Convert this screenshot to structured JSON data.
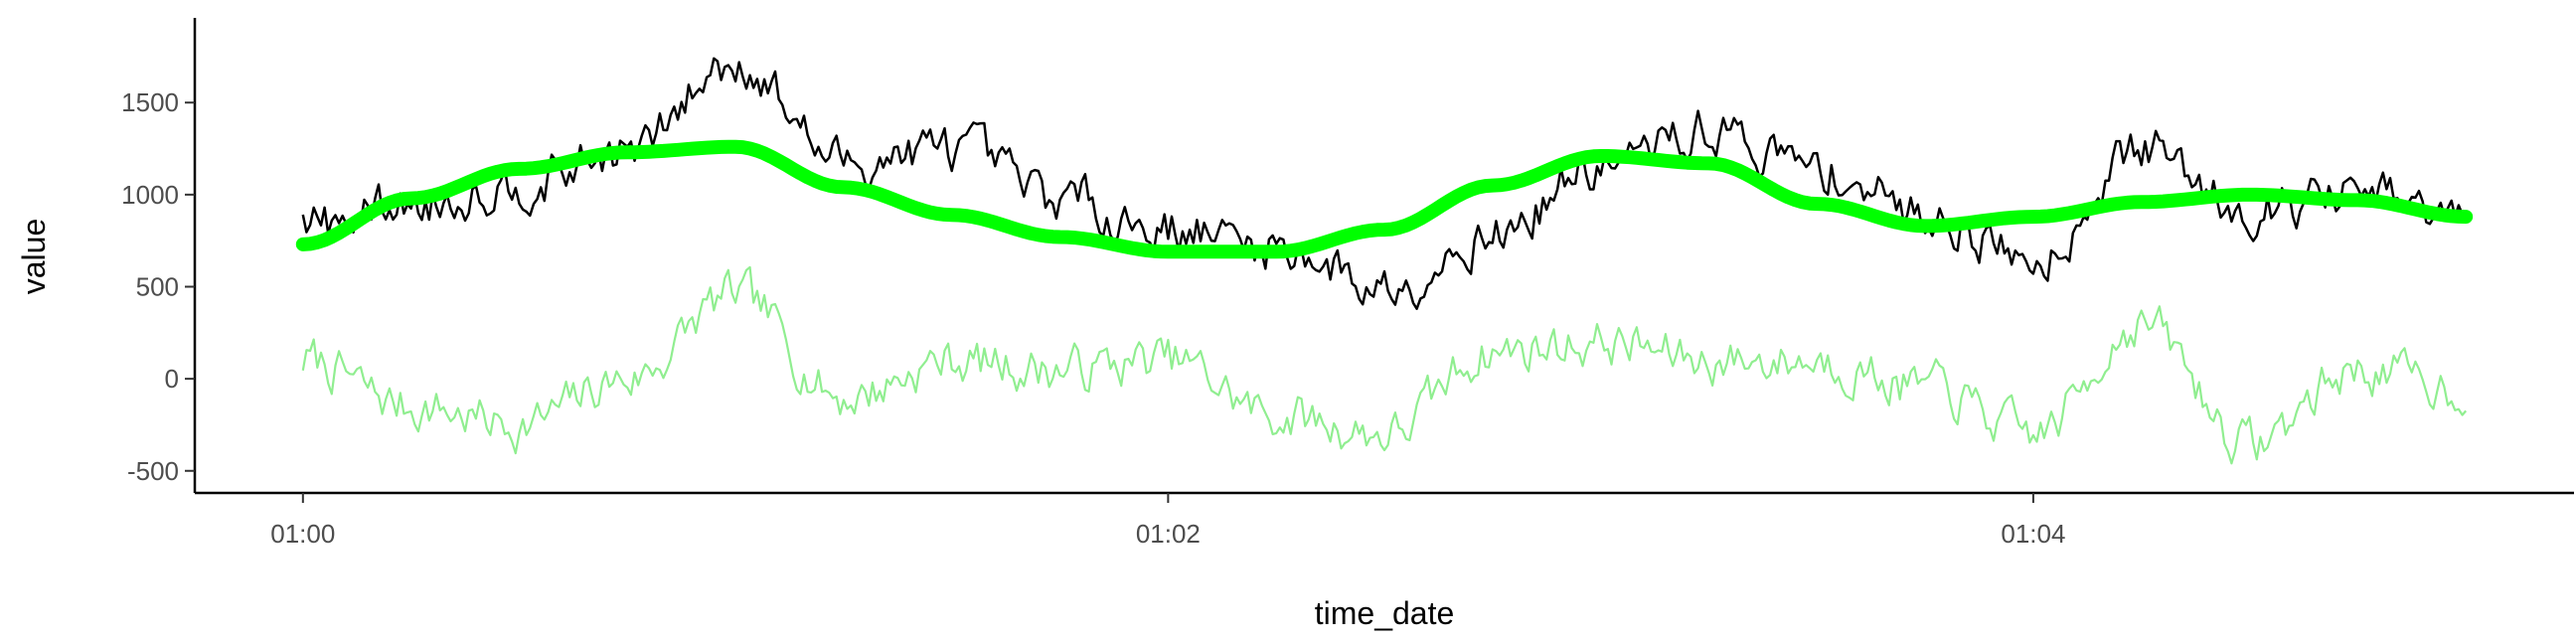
{
  "chart_data": {
    "type": "line",
    "title": "",
    "xlabel": "time_date",
    "ylabel": "value",
    "xlim": [
      "00:59:45",
      "01:05:15"
    ],
    "ylim": [
      -620,
      1960
    ],
    "x_ticks": [
      "01:00",
      "01:02",
      "01:04"
    ],
    "y_ticks": [
      -500,
      0,
      500,
      1000,
      1500
    ],
    "grid": false,
    "legend": "none",
    "x_start": "01:00:00",
    "x_end": "01:05:00",
    "series": [
      {
        "color": "#000000",
        "style": "noisy line",
        "x": [
          "01:00:00",
          "01:00:15",
          "01:00:30",
          "01:00:45",
          "01:01:00",
          "01:01:15",
          "01:01:30",
          "01:01:45",
          "01:02:00",
          "01:02:15",
          "01:02:30",
          "01:02:45",
          "01:03:00",
          "01:03:15",
          "01:03:30",
          "01:03:45",
          "01:04:00",
          "01:04:15",
          "01:04:30",
          "01:04:45",
          "01:05:00"
        ],
        "values": [
          820,
          950,
          1060,
          1230,
          1720,
          1180,
          1250,
          980,
          820,
          720,
          500,
          780,
          1150,
          1350,
          1140,
          900,
          650,
          1250,
          930,
          1000,
          850
        ]
      },
      {
        "color": "#00ff00",
        "style": "smooth trend",
        "x": [
          "01:00:00",
          "01:00:15",
          "01:00:30",
          "01:00:45",
          "01:01:00",
          "01:01:15",
          "01:01:30",
          "01:01:45",
          "01:02:00",
          "01:02:15",
          "01:02:30",
          "01:02:45",
          "01:03:00",
          "01:03:15",
          "01:03:30",
          "01:03:45",
          "01:04:00",
          "01:04:15",
          "01:04:30",
          "01:04:45",
          "01:05:00"
        ],
        "values": [
          730,
          980,
          1140,
          1230,
          1260,
          1040,
          890,
          770,
          690,
          690,
          810,
          1050,
          1210,
          1170,
          950,
          830,
          880,
          960,
          1000,
          970,
          880
        ]
      },
      {
        "color": "#90ee90",
        "style": "noisy line",
        "x": [
          "01:00:00",
          "01:00:15",
          "01:00:30",
          "01:00:45",
          "01:01:00",
          "01:01:15",
          "01:01:30",
          "01:01:45",
          "01:02:00",
          "01:02:15",
          "01:02:30",
          "01:02:45",
          "01:03:00",
          "01:03:15",
          "01:03:30",
          "01:03:45",
          "01:04:00",
          "01:04:15",
          "01:04:30",
          "01:04:45",
          "01:05:00"
        ],
        "values": [
          100,
          -150,
          -250,
          0,
          450,
          -100,
          100,
          50,
          100,
          -200,
          -300,
          150,
          200,
          100,
          100,
          -50,
          -300,
          300,
          -350,
          50,
          -50
        ]
      }
    ]
  }
}
